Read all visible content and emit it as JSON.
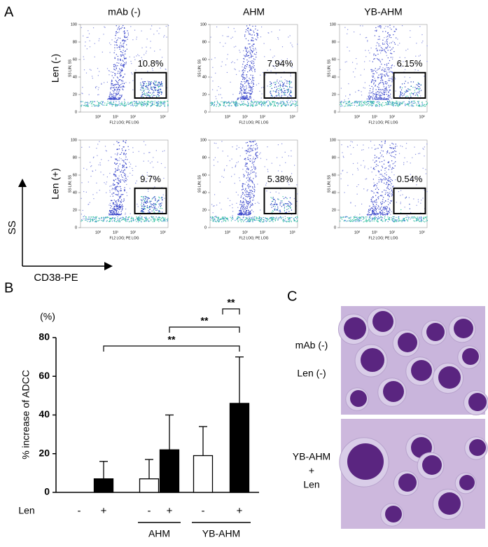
{
  "panel_a": {
    "label": "A",
    "columns": [
      "mAb (-)",
      "AHM",
      "YB-AHM"
    ],
    "rows": [
      "Len (-)",
      "Len (+)"
    ],
    "gates": [
      [
        "10.8%",
        "7.94%",
        "6.15%"
      ],
      [
        "9.7%",
        "5.38%",
        "0.54%"
      ]
    ],
    "plot_ylabel": "SS LIN; SS",
    "plot_xlabel": "FL2 LOG; PE LOG",
    "plot_yticks": [
      0,
      20,
      40,
      60,
      80,
      100
    ],
    "plot_xticks": [
      "10⁰",
      "10¹",
      "10²",
      "10³"
    ],
    "axis_y": "SS",
    "axis_x": "CD38-PE"
  },
  "chart_data": {
    "type": "bar",
    "panel_label": "B",
    "unit": "(%)",
    "ylabel": "% increase of ADCC",
    "row_label": "Len",
    "categories": [
      null,
      "AHM",
      "YB-AHM"
    ],
    "series": [
      {
        "name": "-",
        "color": "#ffffff",
        "values": [
          0,
          7,
          19
        ],
        "errors": [
          0,
          10,
          15
        ]
      },
      {
        "name": "+",
        "color": "#000000",
        "values": [
          7,
          22,
          46
        ],
        "errors": [
          9,
          18,
          24
        ]
      }
    ],
    "annotations": [
      "**",
      "**",
      "**"
    ],
    "ylim": [
      0,
      80
    ],
    "yticks": [
      0,
      20,
      40,
      60,
      80
    ]
  },
  "panel_c": {
    "label": "C",
    "top_labels": [
      "mAb (-)",
      "Len (-)"
    ],
    "bottom_labels": [
      "YB-AHM",
      "+",
      "Len"
    ]
  }
}
